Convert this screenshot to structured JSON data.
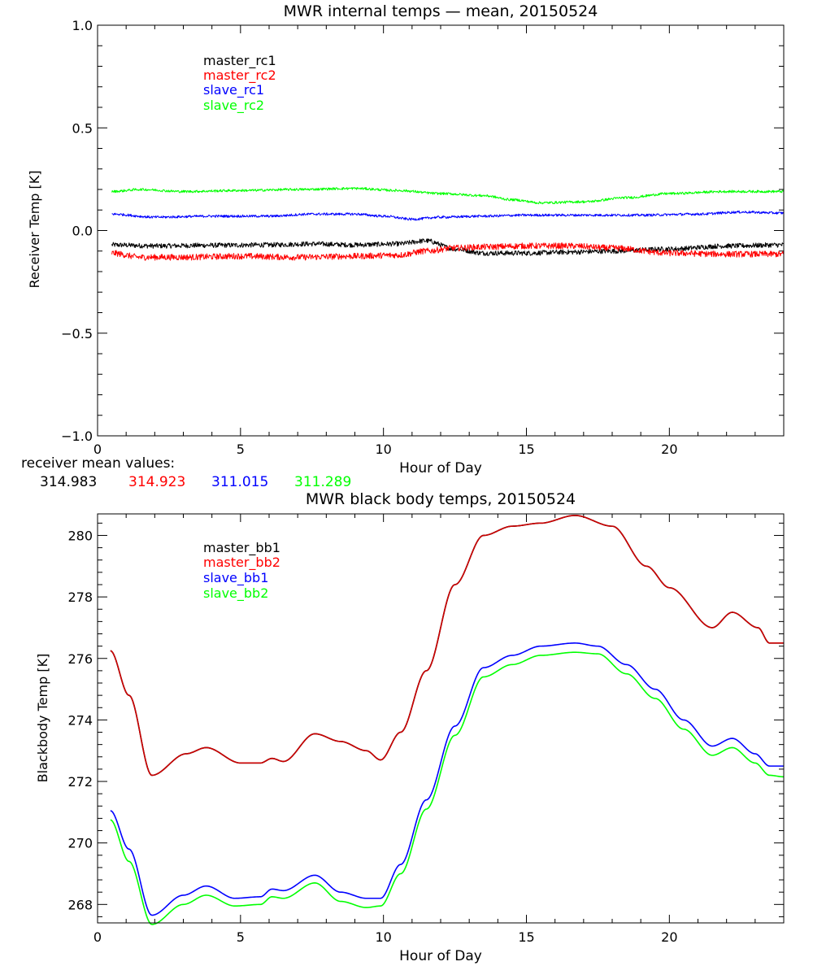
{
  "colors": {
    "black": "#000000",
    "red": "#ff0000",
    "blue": "#0000ff",
    "green": "#00ff00",
    "dark_red": "#cc0000",
    "background": "#ffffff"
  },
  "mean_values": {
    "label": "receiver mean values:",
    "values": [
      "314.983",
      "314.923",
      "311.015",
      "311.289"
    ]
  },
  "chart_data": [
    {
      "type": "line",
      "title": "MWR internal temps — mean, 20150524",
      "xlabel": "Hour of Day",
      "ylabel": "Receiver Temp [K]",
      "xlim": [
        0,
        24
      ],
      "ylim": [
        -1.0,
        1.0
      ],
      "xticks": [
        0,
        5,
        10,
        15,
        20
      ],
      "xtick_labels": [
        "0",
        "5",
        "10",
        "15",
        "20"
      ],
      "yticks": [
        -1.0,
        -0.5,
        0.0,
        0.5,
        1.0
      ],
      "ytick_labels": [
        "−1.0",
        "−0.5",
        "0.0",
        "0.5",
        "1.0"
      ],
      "legend_position": "top-left",
      "series": [
        {
          "name": "master_rc1",
          "color": "#000000",
          "noise": 0.012,
          "x": [
            0.5,
            2,
            4,
            6,
            7.5,
            9,
            10.5,
            11.5,
            12.5,
            13.5,
            15,
            16.5,
            18,
            20,
            22,
            24
          ],
          "y": [
            -0.07,
            -0.075,
            -0.072,
            -0.07,
            -0.065,
            -0.07,
            -0.065,
            -0.05,
            -0.09,
            -0.11,
            -0.11,
            -0.105,
            -0.1,
            -0.09,
            -0.075,
            -0.07
          ]
        },
        {
          "name": "master_rc2",
          "color": "#ff0000",
          "noise": 0.015,
          "x": [
            0.5,
            1.5,
            3,
            5,
            7,
            9,
            10.5,
            11.5,
            12.5,
            13.5,
            15,
            16.5,
            18,
            20,
            22,
            24
          ],
          "y": [
            -0.11,
            -0.13,
            -0.13,
            -0.125,
            -0.13,
            -0.125,
            -0.12,
            -0.1,
            -0.085,
            -0.08,
            -0.075,
            -0.075,
            -0.085,
            -0.11,
            -0.115,
            -0.115
          ]
        },
        {
          "name": "slave_rc1",
          "color": "#0000ff",
          "noise": 0.006,
          "x": [
            0.5,
            2,
            4,
            6,
            7.5,
            9,
            10,
            11,
            12,
            13.5,
            15,
            17,
            19,
            21,
            22.5,
            24
          ],
          "y": [
            0.08,
            0.065,
            0.07,
            0.07,
            0.08,
            0.08,
            0.07,
            0.055,
            0.065,
            0.07,
            0.075,
            0.075,
            0.075,
            0.08,
            0.09,
            0.085
          ]
        },
        {
          "name": "slave_rc2",
          "color": "#00ff00",
          "noise": 0.006,
          "x": [
            0.5,
            1.5,
            3,
            5,
            7,
            9,
            10.5,
            12,
            13.5,
            14.5,
            15.5,
            17,
            18.5,
            20,
            22,
            24
          ],
          "y": [
            0.19,
            0.2,
            0.19,
            0.195,
            0.2,
            0.205,
            0.195,
            0.18,
            0.17,
            0.15,
            0.135,
            0.14,
            0.16,
            0.18,
            0.19,
            0.19
          ]
        }
      ]
    },
    {
      "type": "line",
      "title": "MWR black body temps, 20150524",
      "xlabel": "Hour of Day",
      "ylabel": "Blackbody Temp [K]",
      "xlim": [
        0,
        24
      ],
      "ylim": [
        267.4,
        280.7
      ],
      "xticks": [
        0,
        5,
        10,
        15,
        20
      ],
      "xtick_labels": [
        "0",
        "5",
        "10",
        "15",
        "20"
      ],
      "yticks": [
        268,
        270,
        272,
        274,
        276,
        278,
        280
      ],
      "ytick_labels": [
        "268",
        "270",
        "272",
        "274",
        "276",
        "278",
        "280"
      ],
      "legend_position": "top-left",
      "series": [
        {
          "name": "master_bb1",
          "color": "#000000",
          "noise": 0,
          "x": [
            0.45,
            1.1,
            1.9,
            3.1,
            3.8,
            5,
            5.7,
            6.1,
            6.5,
            7.6,
            8.5,
            9.4,
            9.9,
            10.6,
            11.5,
            12.5,
            13.5,
            14.5,
            15.5,
            16.7,
            18,
            19.2,
            20,
            21.5,
            22.2,
            23.1,
            23.5,
            24
          ],
          "y": [
            276.25,
            274.8,
            272.2,
            272.9,
            273.1,
            272.6,
            272.6,
            272.75,
            272.65,
            273.55,
            273.3,
            273.0,
            272.7,
            273.6,
            275.6,
            278.4,
            280.0,
            280.3,
            280.4,
            280.65,
            280.3,
            279.0,
            278.3,
            277.0,
            277.5,
            277.0,
            276.5,
            276.5
          ]
        },
        {
          "name": "master_bb2",
          "color": "#cc0000",
          "noise": 0,
          "x": [
            0.45,
            1.1,
            1.9,
            3.1,
            3.8,
            5,
            5.7,
            6.1,
            6.5,
            7.6,
            8.5,
            9.4,
            9.9,
            10.6,
            11.5,
            12.5,
            13.5,
            14.5,
            15.5,
            16.7,
            18,
            19.2,
            20,
            21.5,
            22.2,
            23.1,
            23.5,
            24
          ],
          "y": [
            276.25,
            274.8,
            272.2,
            272.9,
            273.1,
            272.6,
            272.6,
            272.75,
            272.65,
            273.55,
            273.3,
            273.0,
            272.7,
            273.6,
            275.6,
            278.4,
            280.0,
            280.3,
            280.4,
            280.65,
            280.3,
            279.0,
            278.3,
            277.0,
            277.5,
            277.0,
            276.5,
            276.5
          ]
        },
        {
          "name": "slave_bb1",
          "color": "#0000ff",
          "noise": 0,
          "x": [
            0.45,
            1.1,
            1.9,
            3.0,
            3.8,
            4.8,
            5.7,
            6.1,
            6.5,
            7.6,
            8.5,
            9.4,
            9.9,
            10.6,
            11.5,
            12.5,
            13.5,
            14.5,
            15.5,
            16.7,
            17.5,
            18.5,
            19.5,
            20.5,
            21.5,
            22.2,
            23.0,
            23.5,
            24
          ],
          "y": [
            271.05,
            269.8,
            267.65,
            268.3,
            268.6,
            268.2,
            268.25,
            268.5,
            268.45,
            268.95,
            268.4,
            268.2,
            268.2,
            269.3,
            271.4,
            273.8,
            275.7,
            276.1,
            276.4,
            276.5,
            276.4,
            275.8,
            275.0,
            274.0,
            273.15,
            273.4,
            272.9,
            272.5,
            272.5
          ]
        },
        {
          "name": "slave_bb2",
          "color": "#00ff00",
          "noise": 0,
          "x": [
            0.45,
            1.1,
            1.9,
            3.0,
            3.8,
            4.8,
            5.7,
            6.1,
            6.5,
            7.6,
            8.5,
            9.4,
            9.9,
            10.6,
            11.5,
            12.5,
            13.5,
            14.5,
            15.5,
            16.7,
            17.5,
            18.5,
            19.5,
            20.5,
            21.5,
            22.2,
            23.0,
            23.5,
            24
          ],
          "y": [
            270.75,
            269.4,
            267.35,
            268.0,
            268.3,
            267.95,
            268.0,
            268.25,
            268.2,
            268.7,
            268.1,
            267.9,
            267.95,
            269.0,
            271.1,
            273.5,
            275.4,
            275.8,
            276.1,
            276.2,
            276.15,
            275.5,
            274.7,
            273.7,
            272.85,
            273.1,
            272.6,
            272.2,
            272.15
          ]
        }
      ]
    }
  ]
}
